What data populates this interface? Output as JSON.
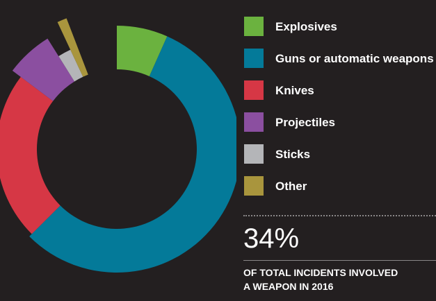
{
  "chart_data": {
    "type": "pie",
    "variant": "donut",
    "series": [
      {
        "name": "Explosives",
        "color": "#6bb23f",
        "sweep_degrees": 24
      },
      {
        "name": "Guns or automatic weapons",
        "color": "#047a99",
        "sweep_degrees": 201
      },
      {
        "name": "Knives",
        "color": "#d63745",
        "sweep_degrees": 82
      },
      {
        "name": "Projectiles",
        "color": "#8b4fa0",
        "sweep_degrees": 21
      },
      {
        "name": "Sticks",
        "color": "#b4b5b8",
        "sweep_degrees": 7
      },
      {
        "name": "Other",
        "color": "#a9953d",
        "sweep_degrees": 4
      }
    ],
    "legend_position": "right"
  },
  "legend_items": [
    {
      "label": "Explosives",
      "color": "#6bb23f",
      "icon": "swatch"
    },
    {
      "label": "Guns or automatic weapons",
      "color": "#047a99",
      "icon": "swatch"
    },
    {
      "label": "Knives",
      "color": "#d63745",
      "icon": "swatch"
    },
    {
      "label": "Projectiles",
      "color": "#8b4fa0",
      "icon": "swatch"
    },
    {
      "label": "Sticks",
      "color": "#b4b5b8",
      "icon": "swatch"
    },
    {
      "label": "Other",
      "color": "#a9953d",
      "icon": "swatch"
    }
  ],
  "stat": {
    "value": "34%",
    "caption_line1": "OF TOTAL INCIDENTS INVOLVED",
    "caption_line2": "A WEAPON IN 2016"
  },
  "colors": {
    "background": "#231f20",
    "text": "#ffffff",
    "divider": "#8a8788"
  }
}
